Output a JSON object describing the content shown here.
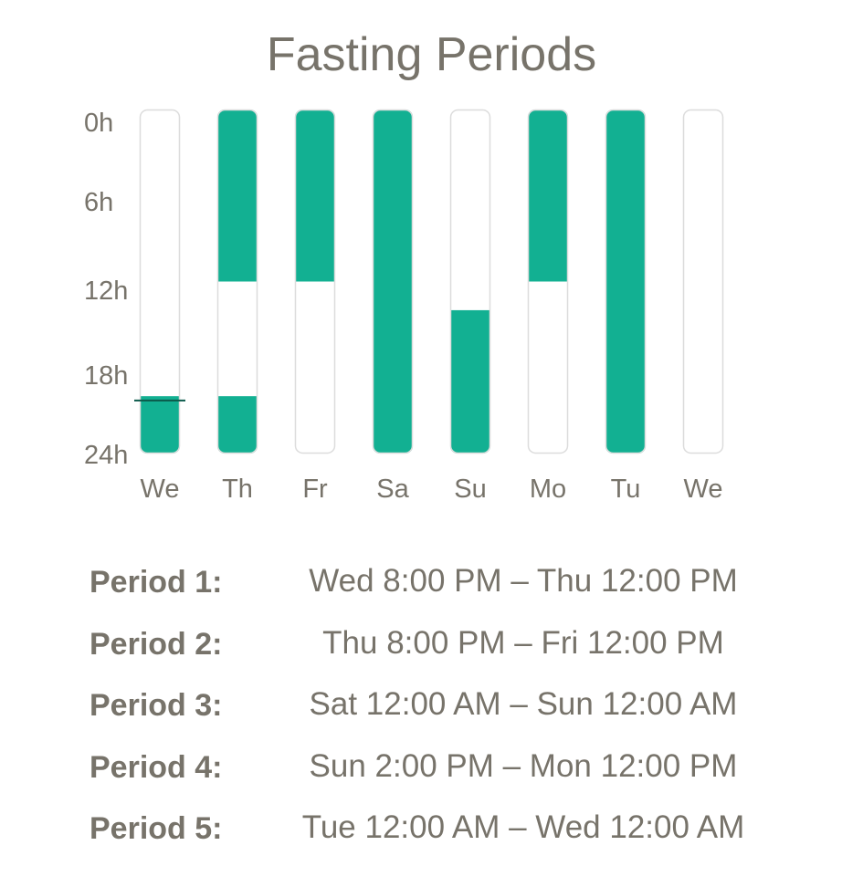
{
  "chart_data": {
    "type": "bar",
    "title": "Fasting Periods",
    "categories": [
      "We",
      "Th",
      "Fr",
      "Sa",
      "Su",
      "Mo",
      "Tu",
      "We"
    ],
    "y_axis": {
      "ticks": [
        "0h",
        "6h",
        "12h",
        "18h",
        "24h"
      ],
      "tick_values": [
        0,
        6,
        12,
        18,
        24
      ],
      "range": [
        0,
        24
      ],
      "direction": "top-to-bottom"
    },
    "fasting_segments_hours": [
      [
        [
          20,
          24
        ]
      ],
      [
        [
          0,
          12
        ],
        [
          20,
          24
        ]
      ],
      [
        [
          0,
          12
        ]
      ],
      [
        [
          0,
          24
        ]
      ],
      [
        [
          14,
          24
        ]
      ],
      [
        [
          0,
          12
        ]
      ],
      [
        [
          0,
          24
        ]
      ],
      []
    ],
    "current_time_marker": {
      "day_index": 0,
      "hour": 20.3
    },
    "colors": {
      "fasting": "#12b092",
      "empty": "#ffffff",
      "border": "#dcdcdc",
      "marker": "#0b5a4b",
      "text": "#77736a"
    }
  },
  "periods": [
    {
      "label": "Period 1:",
      "range": "Wed 8:00 PM – Thu 12:00 PM"
    },
    {
      "label": "Period 2:",
      "range": "Thu 8:00 PM – Fri 12:00 PM"
    },
    {
      "label": "Period 3:",
      "range": "Sat 12:00 AM – Sun 12:00 AM"
    },
    {
      "label": "Period 4:",
      "range": "Sun 2:00 PM – Mon 12:00 PM"
    },
    {
      "label": "Period 5:",
      "range": "Tue 12:00 AM – Wed 12:00 AM"
    }
  ]
}
